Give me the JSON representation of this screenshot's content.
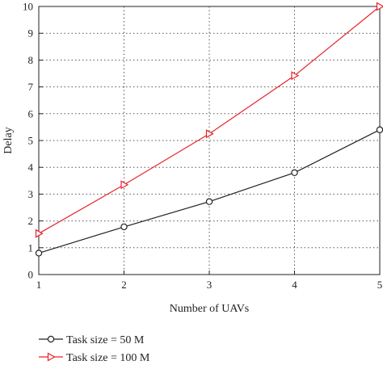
{
  "chart_data": {
    "type": "line",
    "xlabel": "Number of UAVs",
    "ylabel": "Delay",
    "xlim": [
      1,
      5
    ],
    "ylim": [
      0,
      10
    ],
    "xticks": [
      1,
      2,
      3,
      4,
      5
    ],
    "yticks": [
      0,
      1,
      2,
      3,
      4,
      5,
      6,
      7,
      8,
      9,
      10
    ],
    "grid": true,
    "legend_position": "bottom-left",
    "x": [
      1,
      2,
      3,
      4,
      5
    ],
    "series": [
      {
        "name": "Task size = 50 M",
        "values": [
          0.8,
          1.78,
          2.72,
          3.8,
          5.4
        ],
        "color": "#222222",
        "marker": "circle"
      },
      {
        "name": "Task size = 100 M",
        "values": [
          1.53,
          3.35,
          5.25,
          7.42,
          10.0
        ],
        "color": "#e8232a",
        "marker": "triangle-right"
      }
    ]
  }
}
